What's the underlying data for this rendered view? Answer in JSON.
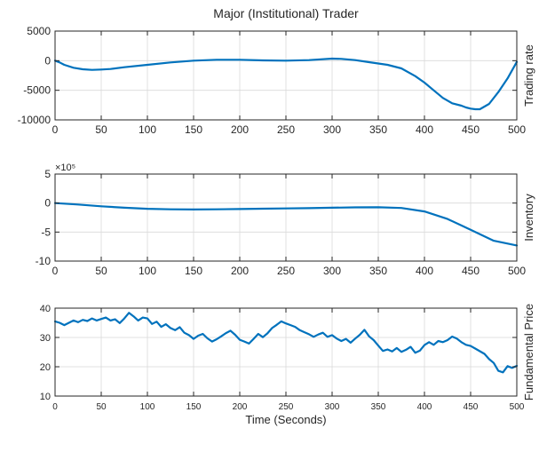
{
  "figure_title": "Major (Institutional) Trader",
  "colors": {
    "line": "#0072bd",
    "axis": "#262626",
    "grid": "#d9d9d9",
    "background": "#ffffff"
  },
  "chart_data": [
    {
      "type": "line",
      "ylabel": "Trading rate",
      "xlabel": "",
      "xlim": [
        0,
        500
      ],
      "ylim": [
        -10000,
        5000
      ],
      "xticks": [
        0,
        50,
        100,
        150,
        200,
        250,
        300,
        350,
        400,
        450,
        500
      ],
      "yticks": [
        -10000,
        -5000,
        0,
        5000
      ],
      "xtick_labels": [
        "0",
        "50",
        "100",
        "150",
        "200",
        "250",
        "300",
        "350",
        "400",
        "450",
        "500"
      ],
      "ytick_labels": [
        "-10000",
        "-5000",
        "0",
        "5000"
      ],
      "exponent_label": "",
      "grid": true,
      "x": [
        0,
        5,
        10,
        20,
        30,
        40,
        50,
        60,
        75,
        100,
        125,
        150,
        175,
        200,
        225,
        250,
        275,
        300,
        310,
        325,
        340,
        360,
        375,
        390,
        400,
        410,
        420,
        430,
        440,
        445,
        450,
        455,
        460,
        470,
        480,
        490,
        500
      ],
      "y": [
        0,
        -300,
        -700,
        -1200,
        -1450,
        -1550,
        -1500,
        -1400,
        -1100,
        -700,
        -300,
        0,
        150,
        150,
        50,
        0,
        100,
        350,
        300,
        100,
        -250,
        -700,
        -1300,
        -2600,
        -3700,
        -5000,
        -6300,
        -7200,
        -7600,
        -7900,
        -8100,
        -8200,
        -8200,
        -7300,
        -5300,
        -3000,
        -200
      ]
    },
    {
      "type": "line",
      "ylabel": "Inventory",
      "xlabel": "",
      "xlim": [
        0,
        500
      ],
      "ylim": [
        -10,
        5
      ],
      "xticks": [
        0,
        50,
        100,
        150,
        200,
        250,
        300,
        350,
        400,
        450,
        500
      ],
      "yticks": [
        -10,
        -5,
        0,
        5
      ],
      "xtick_labels": [
        "0",
        "50",
        "100",
        "150",
        "200",
        "250",
        "300",
        "350",
        "400",
        "450",
        "500"
      ],
      "ytick_labels": [
        "-10",
        "-5",
        "0",
        "5"
      ],
      "exponent_label": "×10⁵",
      "grid": true,
      "x": [
        0,
        25,
        50,
        75,
        100,
        125,
        150,
        175,
        200,
        225,
        250,
        275,
        300,
        325,
        350,
        375,
        400,
        425,
        450,
        475,
        500
      ],
      "y": [
        0,
        -0.25,
        -0.55,
        -0.8,
        -0.98,
        -1.07,
        -1.1,
        -1.08,
        -1.03,
        -0.97,
        -0.93,
        -0.88,
        -0.8,
        -0.74,
        -0.72,
        -0.85,
        -1.45,
        -2.75,
        -4.6,
        -6.5,
        -7.3
      ]
    },
    {
      "type": "line",
      "ylabel": "Fundamental Price",
      "xlabel": "Time (Seconds)",
      "xlim": [
        0,
        500
      ],
      "ylim": [
        10,
        40
      ],
      "xticks": [
        0,
        50,
        100,
        150,
        200,
        250,
        300,
        350,
        400,
        450,
        500
      ],
      "yticks": [
        10,
        20,
        30,
        40
      ],
      "xtick_labels": [
        "0",
        "50",
        "100",
        "150",
        "200",
        "250",
        "300",
        "350",
        "400",
        "450",
        "500"
      ],
      "ytick_labels": [
        "10",
        "20",
        "30",
        "40"
      ],
      "exponent_label": "",
      "grid": true,
      "x": [
        0,
        5,
        10,
        15,
        20,
        25,
        30,
        35,
        40,
        45,
        50,
        55,
        60,
        65,
        70,
        75,
        80,
        85,
        90,
        95,
        100,
        105,
        110,
        115,
        120,
        125,
        130,
        135,
        140,
        145,
        150,
        155,
        160,
        165,
        170,
        175,
        180,
        185,
        190,
        195,
        200,
        205,
        210,
        215,
        220,
        225,
        230,
        235,
        240,
        245,
        250,
        255,
        260,
        265,
        270,
        275,
        280,
        285,
        290,
        295,
        300,
        305,
        310,
        315,
        320,
        325,
        330,
        335,
        340,
        345,
        350,
        355,
        360,
        365,
        370,
        375,
        380,
        385,
        390,
        395,
        400,
        405,
        410,
        415,
        420,
        425,
        430,
        435,
        440,
        445,
        450,
        455,
        460,
        465,
        470,
        475,
        480,
        485,
        490,
        495,
        500
      ],
      "y": [
        35.5,
        35,
        34.2,
        35,
        35.8,
        35.2,
        36,
        35.6,
        36.5,
        35.8,
        36.3,
        36.8,
        35.8,
        36.2,
        34.9,
        36.5,
        38.4,
        37.2,
        35.8,
        36.8,
        36.5,
        34.6,
        35.4,
        33.6,
        34.5,
        33.2,
        32.5,
        33.5,
        31.6,
        30.8,
        29.5,
        30.6,
        31.2,
        29.7,
        28.6,
        29.4,
        30.4,
        31.5,
        32.3,
        30.9,
        29.2,
        28.6,
        27.9,
        29.5,
        31.2,
        30.1,
        31.4,
        33.2,
        34.3,
        35.5,
        34.8,
        34.2,
        33.6,
        32.5,
        31.8,
        31.1,
        30.2,
        31,
        31.6,
        30.2,
        30.8,
        29.6,
        28.8,
        29.5,
        28.2,
        29.6,
        30.9,
        32.6,
        30.4,
        29.1,
        27.2,
        25.4,
        25.9,
        25.2,
        26.4,
        25.1,
        25.8,
        26.8,
        24.8,
        25.5,
        27.4,
        28.4,
        27.5,
        28.8,
        28.4,
        29.1,
        30.3,
        29.6,
        28.4,
        27.5,
        27.1,
        26.2,
        25.3,
        24.4,
        22.6,
        21.3,
        18.6,
        18.1,
        20.2,
        19.6,
        20.3
      ]
    }
  ]
}
